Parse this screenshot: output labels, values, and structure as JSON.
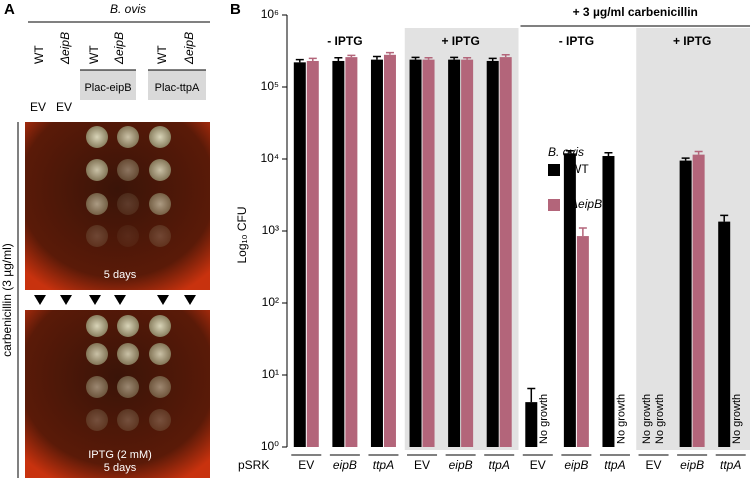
{
  "panel_a": {
    "label": "A",
    "strain": "B. ovis",
    "columns": [
      "WT",
      "ΔeipB",
      "WT",
      "ΔeipB",
      "WT",
      "ΔeipB"
    ],
    "ev_labels": [
      "EV",
      "EV"
    ],
    "constructs": [
      "Plac-eipB",
      "Plac-ttpA"
    ],
    "side_label": "carbenicillin (3 µg/ml)",
    "plate_top_label": "5 days",
    "plate_bottom_labels": [
      "IPTG (2 mM)",
      "5 days"
    ]
  },
  "chart_data": {
    "type": "bar",
    "panel_label": "B",
    "y_label": "Log₁₀ CFU",
    "row_label": "pSRK",
    "log_scale": true,
    "ylim": [
      1,
      1000000
    ],
    "yticks": [
      {
        "value": 1,
        "label": "10⁰"
      },
      {
        "value": 10,
        "label": "10¹"
      },
      {
        "value": 100,
        "label": "10²"
      },
      {
        "value": 1000,
        "label": "10³"
      },
      {
        "value": 10000,
        "label": "10⁴"
      },
      {
        "value": 100000,
        "label": "10⁵"
      },
      {
        "value": 1000000,
        "label": "10⁶"
      }
    ],
    "groups": [
      {
        "label": "- IPTG",
        "shaded": false,
        "categories": [
          "EV",
          "eipB",
          "ttpA"
        ]
      },
      {
        "label": "+ IPTG",
        "shaded": true,
        "categories": [
          "EV",
          "eipB",
          "ttpA"
        ]
      },
      {
        "label": "- IPTG",
        "shaded": false,
        "categories": [
          "EV",
          "eipB",
          "ttpA"
        ]
      },
      {
        "label": "+ IPTG",
        "shaded": true,
        "categories": [
          "EV",
          "eipB",
          "ttpA"
        ]
      }
    ],
    "super_groups": [
      {
        "label": "+ 3 µg/ml carbenicillin",
        "groups": [
          2,
          3
        ]
      }
    ],
    "legend_title": "B. ovis",
    "series": [
      {
        "name": "WT",
        "color": "#000000",
        "values": [
          220000,
          230000,
          240000,
          240000,
          240000,
          230000,
          4.2,
          12000,
          11000,
          null,
          9500,
          1350
        ],
        "errors": [
          20000,
          25000,
          25000,
          18000,
          18000,
          20000,
          2.3,
          1000,
          1200,
          null,
          800,
          300
        ],
        "value_labels": [
          null,
          null,
          null,
          null,
          null,
          null,
          null,
          null,
          null,
          "No growth",
          null,
          null
        ]
      },
      {
        "name": "ΔeipB",
        "color": "#b3657a",
        "values": [
          230000,
          260000,
          280000,
          240000,
          240000,
          260000,
          null,
          850,
          null,
          null,
          11500,
          null
        ],
        "errors": [
          20000,
          15000,
          20000,
          15000,
          15000,
          20000,
          null,
          250,
          null,
          null,
          1200,
          null
        ],
        "value_labels": [
          null,
          null,
          null,
          null,
          null,
          null,
          "No growth",
          null,
          "No growth",
          "No growth",
          null,
          "No growth"
        ]
      }
    ]
  }
}
